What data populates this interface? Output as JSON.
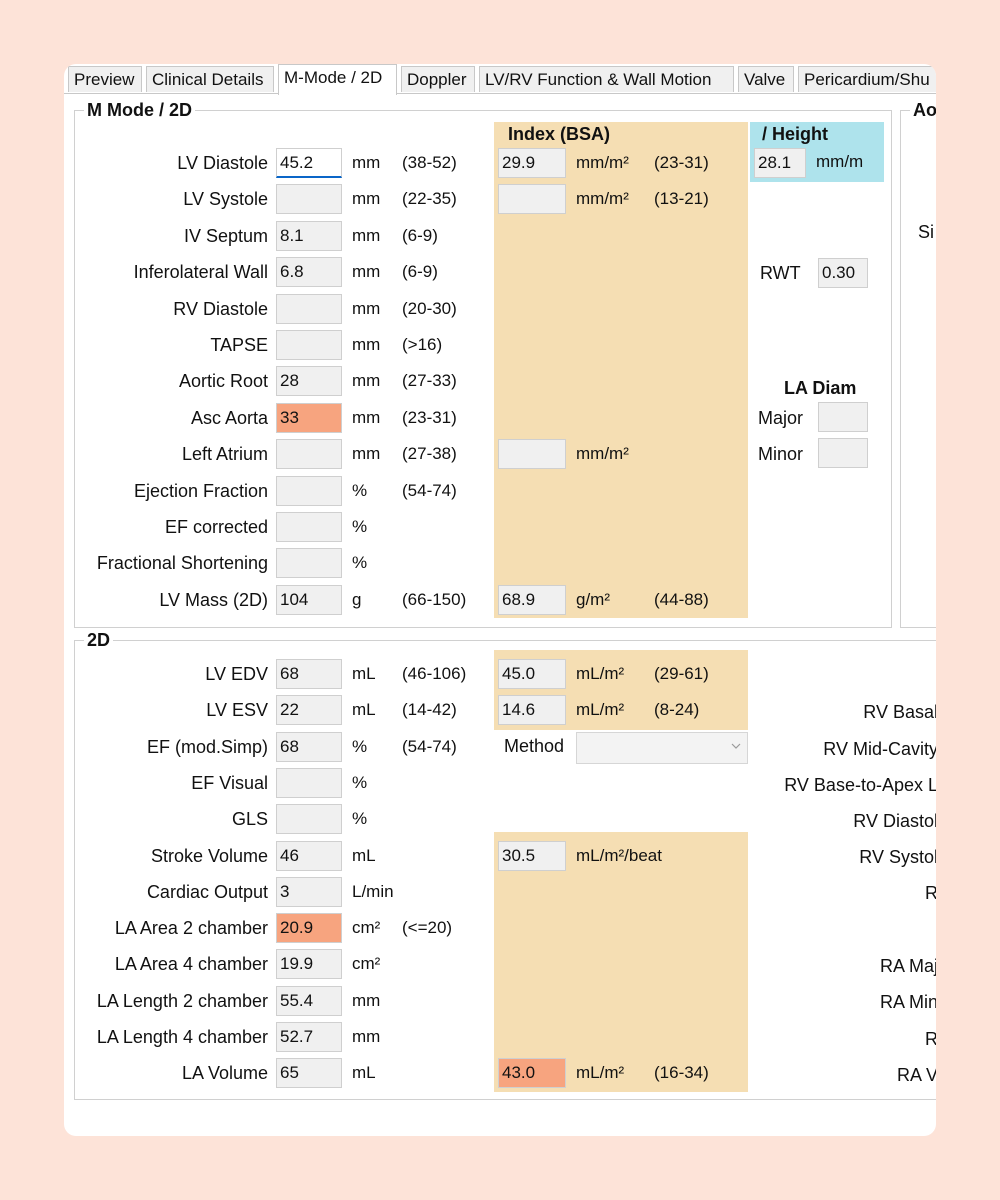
{
  "tabs": [
    {
      "label": "Preview"
    },
    {
      "label": "Clinical Details"
    },
    {
      "label": "M-Mode / 2D"
    },
    {
      "label": "Doppler"
    },
    {
      "label": "LV/RV Function & Wall Motion"
    },
    {
      "label": "Valve"
    },
    {
      "label": "Pericardium/Shu"
    }
  ],
  "mmode": {
    "title": "M Mode / 2D",
    "index_header": "Index (BSA)",
    "height_header": "/ Height",
    "rows": [
      {
        "label": "LV Diastole",
        "value": "45.2",
        "unit": "mm",
        "range": "(38-52)",
        "index": "29.9",
        "index_unit": "mm/m²",
        "index_range": "(23-31)",
        "height": "28.1",
        "height_unit": "mm/m"
      },
      {
        "label": "LV Systole",
        "value": "",
        "unit": "mm",
        "range": "(22-35)",
        "index": "",
        "index_unit": "mm/m²",
        "index_range": "(13-21)"
      },
      {
        "label": "IV Septum",
        "value": "8.1",
        "unit": "mm",
        "range": "(6-9)"
      },
      {
        "label": "Inferolateral Wall",
        "value": "6.8",
        "unit": "mm",
        "range": "(6-9)"
      },
      {
        "label": "RV Diastole",
        "value": "",
        "unit": "mm",
        "range": "(20-30)"
      },
      {
        "label": "TAPSE",
        "value": "",
        "unit": "mm",
        "range": "(>16)"
      },
      {
        "label": "Aortic Root",
        "value": "28",
        "unit": "mm",
        "range": "(27-33)"
      },
      {
        "label": "Asc Aorta",
        "value": "33",
        "unit": "mm",
        "range": "(23-31)"
      },
      {
        "label": "Left Atrium",
        "value": "",
        "unit": "mm",
        "range": "(27-38)",
        "index": "",
        "index_unit": "mm/m²"
      },
      {
        "label": "Ejection Fraction",
        "value": "",
        "unit": "%",
        "range": "(54-74)"
      },
      {
        "label": "EF corrected",
        "value": "",
        "unit": "%"
      },
      {
        "label": "Fractional Shortening",
        "value": "",
        "unit": "%"
      },
      {
        "label": "LV Mass (2D)",
        "value": "104",
        "unit": "g",
        "range": "(66-150)",
        "index": "68.9",
        "index_unit": "g/m²",
        "index_range": "(44-88)"
      }
    ],
    "rwt_label": "RWT",
    "rwt_value": "0.30",
    "la_diam_header": "LA Diam",
    "la_major_label": "Major",
    "la_major_value": "",
    "la_minor_label": "Minor",
    "la_minor_value": ""
  },
  "right_clip": {
    "title": "Ao",
    "row_label": "Si"
  },
  "twod": {
    "title": "2D",
    "rows": [
      {
        "label": "LV EDV",
        "value": "68",
        "unit": "mL",
        "range": "(46-106)",
        "index": "45.0",
        "index_unit": "mL/m²",
        "index_range": "(29-61)"
      },
      {
        "label": "LV ESV",
        "value": "22",
        "unit": "mL",
        "range": "(14-42)",
        "index": "14.6",
        "index_unit": "mL/m²",
        "index_range": "(8-24)"
      },
      {
        "label": "EF (mod.Simp)",
        "value": "68",
        "unit": "%",
        "range": "(54-74)"
      },
      {
        "label": "EF Visual",
        "value": "",
        "unit": "%"
      },
      {
        "label": "GLS",
        "value": "",
        "unit": "%"
      },
      {
        "label": "Stroke Volume",
        "value": "46",
        "unit": "mL",
        "index": "30.5",
        "index_unit": "mL/m²/beat"
      },
      {
        "label": "Cardiac Output",
        "value": "3",
        "unit": "L/min"
      },
      {
        "label": "LA Area 2 chamber",
        "value": "20.9",
        "unit": "cm²",
        "range": "(<=20)"
      },
      {
        "label": "LA Area 4 chamber",
        "value": "19.9",
        "unit": "cm²"
      },
      {
        "label": "LA Length 2 chamber",
        "value": "55.4",
        "unit": "mm"
      },
      {
        "label": "LA Length 4 chamber",
        "value": "52.7",
        "unit": "mm"
      },
      {
        "label": "LA Volume",
        "value": "65",
        "unit": "mL",
        "index": "43.0",
        "index_unit": "mL/m²",
        "index_range": "(16-34)"
      }
    ],
    "method_label": "Method",
    "method_value": "",
    "right_labels": [
      "RV Basal",
      "RV Mid-Cavity",
      "RV Base-to-Apex L",
      "RV Diastol",
      "RV Systol",
      "R",
      "RA Maj",
      "RA Min",
      "R",
      "RA V"
    ]
  },
  "colors": {
    "highlight": "#f7a47f",
    "index_band": "#f5deb3",
    "height_band": "#aee3ec",
    "focus": "#0a66c8"
  }
}
